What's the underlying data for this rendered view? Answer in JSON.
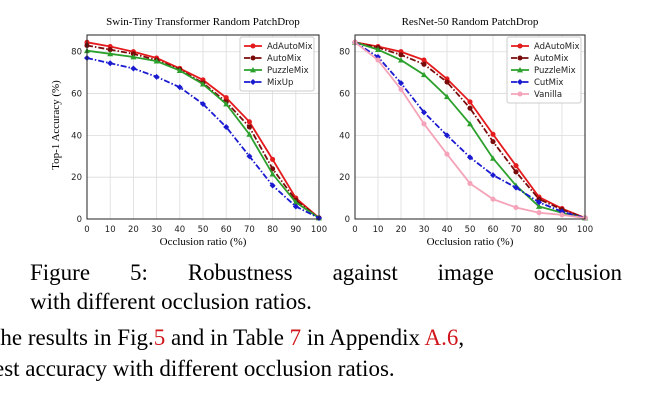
{
  "chart_data": [
    {
      "type": "line",
      "title": "Swin-Tiny Transformer Random PatchDrop",
      "xlabel": "Occlusion ratio (%)",
      "ylabel": "Top-1 Accuracy (%)",
      "xlim": [
        0,
        100
      ],
      "ylim": [
        0,
        88
      ],
      "xticks": [
        0,
        10,
        20,
        30,
        40,
        50,
        60,
        70,
        80,
        90,
        100
      ],
      "yticks": [
        0,
        20,
        40,
        60,
        80
      ],
      "legend_position": "top-right",
      "x": [
        0,
        10,
        20,
        30,
        40,
        50,
        60,
        70,
        80,
        90,
        100
      ],
      "series": [
        {
          "name": "AdAutoMix",
          "color": "#e41a1c",
          "marker": "circle",
          "dash": "solid",
          "values": [
            84.5,
            82.5,
            80,
            77,
            72,
            66.5,
            58,
            46.5,
            28.5,
            10,
            0.5
          ]
        },
        {
          "name": "AutoMix",
          "color": "#7a0b0b",
          "marker": "circle",
          "dash": "dashdot",
          "values": [
            83,
            81,
            79,
            76,
            71.5,
            65,
            56,
            44,
            24,
            9,
            0.5
          ]
        },
        {
          "name": "PuzzleMix",
          "color": "#2ca02c",
          "marker": "triangle",
          "dash": "solid",
          "values": [
            80.5,
            79,
            77.5,
            75.5,
            71,
            64.5,
            55,
            40.5,
            21.5,
            8,
            0.5
          ]
        },
        {
          "name": "MixUp",
          "color": "#1a1ad0",
          "marker": "diamond",
          "dash": "dashdot",
          "values": [
            77,
            74.5,
            72,
            68,
            63,
            55,
            44,
            30,
            16,
            6,
            0.5
          ]
        }
      ]
    },
    {
      "type": "line",
      "title": "ResNet-50 Random PatchDrop",
      "xlabel": "Occlusion ratio (%)",
      "ylabel": "",
      "xlim": [
        0,
        100
      ],
      "ylim": [
        0,
        88
      ],
      "xticks": [
        0,
        10,
        20,
        30,
        40,
        50,
        60,
        70,
        80,
        90,
        100
      ],
      "yticks": [
        0,
        20,
        40,
        60,
        80
      ],
      "legend_position": "top-right",
      "x": [
        0,
        10,
        20,
        30,
        40,
        50,
        60,
        70,
        80,
        90,
        100
      ],
      "series": [
        {
          "name": "AdAutoMix",
          "color": "#e41a1c",
          "marker": "circle",
          "dash": "solid",
          "values": [
            84.5,
            82.5,
            80,
            76,
            67,
            56,
            40.5,
            25.5,
            10.5,
            5,
            0.5
          ]
        },
        {
          "name": "AutoMix",
          "color": "#7a0b0b",
          "marker": "circle",
          "dash": "dashdot",
          "values": [
            84.5,
            82,
            78.5,
            74,
            65.5,
            53,
            37,
            22.5,
            9.5,
            4.5,
            0.5
          ]
        },
        {
          "name": "PuzzleMix",
          "color": "#2ca02c",
          "marker": "triangle",
          "dash": "solid",
          "values": [
            84.5,
            81,
            76,
            69,
            58.5,
            45.5,
            29,
            16,
            6,
            3,
            0.5
          ]
        },
        {
          "name": "CutMix",
          "color": "#1a1ad0",
          "marker": "diamond",
          "dash": "dashdot",
          "values": [
            84.5,
            77.5,
            65,
            51,
            40,
            29.5,
            21,
            15,
            8,
            3.5,
            0.5
          ]
        },
        {
          "name": "Vanilla",
          "color": "#f4a3b8",
          "marker": "circle",
          "dash": "solid",
          "values": [
            84.5,
            76,
            62,
            45.5,
            31,
            17,
            9.5,
            5.5,
            3,
            2,
            0.5
          ]
        }
      ]
    }
  ],
  "caption": {
    "line1_words": [
      "Figure",
      "5:",
      "Robustness",
      "against",
      "image",
      "occlusion"
    ],
    "line2": "with different occlusion ratios."
  },
  "body_text": {
    "line1_before": "the results in Fig.",
    "fig_ref": "5",
    "line1_middle": " and in Table ",
    "table_ref": "7",
    "line1_after": " in Appendix ",
    "appendix_ref": "A.6",
    "line1_end": ",",
    "line2": "est accuracy with different occlusion ratios."
  }
}
